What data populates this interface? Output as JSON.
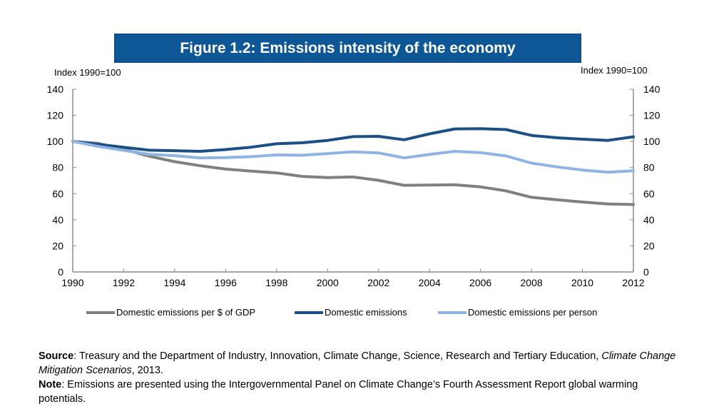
{
  "title": "Figure 1.2: Emissions intensity of the economy",
  "colors": {
    "banner": "#0e5797",
    "axis": "#8c8c8c"
  },
  "chart_data": {
    "type": "line",
    "title": "Figure 1.2: Emissions intensity of the economy",
    "ylabel_left": "Index 1990=100",
    "ylabel_right": "Index 1990=100",
    "xlabel": "",
    "x": [
      1990,
      1991,
      1992,
      1993,
      1994,
      1995,
      1996,
      1997,
      1998,
      1999,
      2000,
      2001,
      2002,
      2003,
      2004,
      2005,
      2006,
      2007,
      2008,
      2009,
      2010,
      2011,
      2012
    ],
    "xlim": [
      1990,
      2012
    ],
    "ylim": [
      0,
      140
    ],
    "x_ticks": [
      "1990",
      "1992",
      "1994",
      "1996",
      "1998",
      "2000",
      "2002",
      "2004",
      "2006",
      "2008",
      "2010",
      "2012"
    ],
    "y_ticks": [
      "0",
      "20",
      "40",
      "60",
      "80",
      "100",
      "120",
      "140"
    ],
    "grid": false,
    "legend_position": "bottom",
    "series": [
      {
        "name": "Domestic emissions per $ of GDP",
        "color": "#808080",
        "values": [
          100,
          98.5,
          94,
          88.7,
          84.5,
          81.4,
          78.8,
          77.2,
          75.9,
          73.2,
          72.3,
          72.8,
          70.2,
          66.4,
          66.6,
          66.8,
          65.2,
          62.1,
          57.2,
          55.3,
          53.6,
          52.1,
          51.7
        ]
      },
      {
        "name": "Domestic emissions",
        "color": "#1b4f85",
        "values": [
          100,
          97.8,
          95.5,
          93.3,
          92.9,
          92.4,
          93.8,
          95.6,
          98.2,
          99,
          100.8,
          103.7,
          103.9,
          101.3,
          105.8,
          109.6,
          109.8,
          109.1,
          104.6,
          102.8,
          101.7,
          100.8,
          103.6
        ]
      },
      {
        "name": "Domestic emissions per person",
        "color": "#8fb4e3",
        "values": [
          100,
          96.2,
          93.2,
          90.2,
          89.1,
          87.4,
          87.6,
          88.3,
          89.7,
          89.4,
          90.7,
          92,
          91.2,
          87.4,
          90,
          92.4,
          91.4,
          88.9,
          83.4,
          80.5,
          78.1,
          76.4,
          77.5
        ]
      }
    ]
  },
  "notes": {
    "source_label": "Source",
    "source_text_1": ": Treasury and the Department of Industry, Innovation, Climate Change, Science, Research and Tertiary Education, ",
    "source_italic": "Climate Change Mitigation Scenarios",
    "source_text_2": ", 2013.",
    "note_label": "Note",
    "note_text": ": Emissions are presented using the Intergovernmental Panel on Climate Change’s Fourth Assessment Report global warming potentials."
  }
}
